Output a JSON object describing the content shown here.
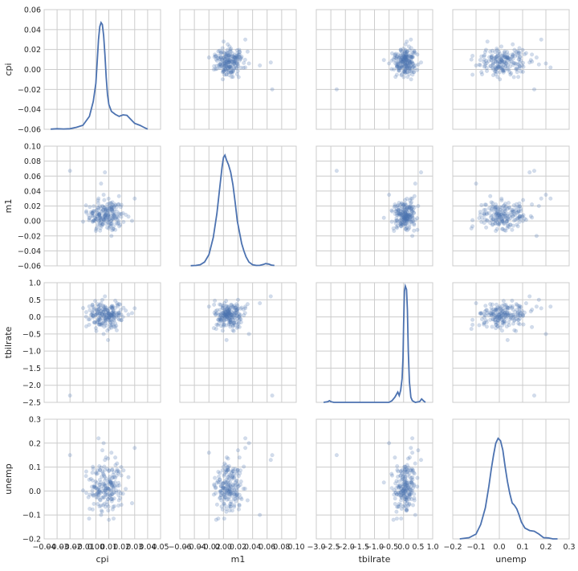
{
  "chart_data": {
    "type": "scatter",
    "variables": [
      "cpi",
      "m1",
      "tbilrate",
      "unemp"
    ],
    "axes": {
      "cpi": {
        "label": "cpi",
        "lim": [
          -0.04,
          0.05
        ],
        "x_ticks": [
          "−0.04",
          "−0.03",
          "−0.02",
          "−0.01",
          "0.00",
          "0.01",
          "0.02",
          "0.03",
          "0.04",
          "0.05"
        ],
        "x_tick_values": [
          -0.04,
          -0.03,
          -0.02,
          -0.01,
          0.0,
          0.01,
          0.02,
          0.03,
          0.04,
          0.05
        ],
        "y_lim": [
          -0.06,
          0.06
        ],
        "y_ticks": [
          "−0.06",
          "−0.04",
          "−0.02",
          "0.00",
          "0.02",
          "0.04",
          "0.06"
        ],
        "y_tick_values": [
          -0.06,
          -0.04,
          -0.02,
          0.0,
          0.02,
          0.04,
          0.06
        ]
      },
      "m1": {
        "label": "m1",
        "lim": [
          -0.06,
          0.1
        ],
        "x_ticks": [
          "−0.06",
          "−0.04",
          "−0.02",
          "0.00",
          "0.02",
          "0.04",
          "0.06",
          "0.08",
          "0.10"
        ],
        "x_tick_values": [
          -0.06,
          -0.04,
          -0.02,
          0.0,
          0.02,
          0.04,
          0.06,
          0.08,
          0.1
        ],
        "y_lim": [
          -0.06,
          0.1
        ],
        "y_ticks": [
          "−0.06",
          "−0.04",
          "−0.02",
          "0.00",
          "0.02",
          "0.04",
          "0.06",
          "0.08",
          "0.10"
        ],
        "y_tick_values": [
          -0.06,
          -0.04,
          -0.02,
          0.0,
          0.02,
          0.04,
          0.06,
          0.08,
          0.1
        ]
      },
      "tbilrate": {
        "label": "tbilrate",
        "lim": [
          -3.0,
          1.0
        ],
        "x_ticks": [
          "−3.0",
          "−2.5",
          "−2.0",
          "−1.5",
          "−1.0",
          "−0.5",
          "0.0",
          "0.5",
          "1.0"
        ],
        "x_tick_values": [
          -3.0,
          -2.5,
          -2.0,
          -1.5,
          -1.0,
          -0.5,
          0.0,
          0.5,
          1.0
        ],
        "y_lim": [
          -2.5,
          1.0
        ],
        "y_ticks": [
          "−2.5",
          "−2.0",
          "−1.5",
          "−1.0",
          "−0.5",
          "0.0",
          "0.5",
          "1.0"
        ],
        "y_tick_values": [
          -2.5,
          -2.0,
          -1.5,
          -1.0,
          -0.5,
          0.0,
          0.5,
          1.0
        ]
      },
      "unemp": {
        "label": "unemp",
        "lim": [
          -0.2,
          0.3
        ],
        "x_ticks": [
          "−0.2",
          "−0.1",
          "0.0",
          "0.1",
          "0.2",
          "0.3"
        ],
        "x_tick_values": [
          -0.2,
          -0.1,
          0.0,
          0.1,
          0.2,
          0.3
        ],
        "y_lim": [
          -0.2,
          0.3
        ],
        "y_ticks": [
          "−0.2",
          "−0.1",
          "0.0",
          "0.1",
          "0.2",
          "0.3"
        ],
        "y_tick_values": [
          -0.2,
          -0.1,
          0.0,
          0.1,
          0.2,
          0.3
        ]
      }
    },
    "kde": {
      "cpi": [
        [
          -0.035,
          -0.0598
        ],
        [
          -0.03,
          -0.0594
        ],
        [
          -0.025,
          -0.0597
        ],
        [
          -0.02,
          -0.0594
        ],
        [
          -0.015,
          -0.058
        ],
        [
          -0.01,
          -0.056
        ],
        [
          -0.005,
          -0.047
        ],
        [
          -0.002,
          -0.032
        ],
        [
          0.0,
          -0.014
        ],
        [
          0.001,
          0.008
        ],
        [
          0.002,
          0.03
        ],
        [
          0.003,
          0.043
        ],
        [
          0.004,
          0.047
        ],
        [
          0.005,
          0.045
        ],
        [
          0.006,
          0.034
        ],
        [
          0.007,
          0.015
        ],
        [
          0.008,
          -0.008
        ],
        [
          0.009,
          -0.025
        ],
        [
          0.01,
          -0.035
        ],
        [
          0.012,
          -0.042
        ],
        [
          0.015,
          -0.045
        ],
        [
          0.018,
          -0.047
        ],
        [
          0.021,
          -0.0455
        ],
        [
          0.024,
          -0.046
        ],
        [
          0.027,
          -0.05
        ],
        [
          0.03,
          -0.054
        ],
        [
          0.034,
          -0.056
        ],
        [
          0.037,
          -0.058
        ],
        [
          0.04,
          -0.0598
        ]
      ],
      "m1": [
        [
          -0.045,
          -0.0598
        ],
        [
          -0.038,
          -0.0595
        ],
        [
          -0.032,
          -0.0585
        ],
        [
          -0.026,
          -0.055
        ],
        [
          -0.02,
          -0.045
        ],
        [
          -0.014,
          -0.022
        ],
        [
          -0.009,
          0.01
        ],
        [
          -0.005,
          0.045
        ],
        [
          -0.002,
          0.072
        ],
        [
          0.0,
          0.085
        ],
        [
          0.002,
          0.088
        ],
        [
          0.004,
          0.082
        ],
        [
          0.007,
          0.075
        ],
        [
          0.01,
          0.065
        ],
        [
          0.013,
          0.048
        ],
        [
          0.016,
          0.025
        ],
        [
          0.019,
          0.0
        ],
        [
          0.022,
          -0.015
        ],
        [
          0.025,
          -0.03
        ],
        [
          0.028,
          -0.04
        ],
        [
          0.031,
          -0.048
        ],
        [
          0.035,
          -0.055
        ],
        [
          0.04,
          -0.0585
        ],
        [
          0.045,
          -0.0595
        ],
        [
          0.05,
          -0.0594
        ],
        [
          0.055,
          -0.0582
        ],
        [
          0.058,
          -0.057
        ],
        [
          0.062,
          -0.0576
        ],
        [
          0.066,
          -0.059
        ],
        [
          0.07,
          -0.0595
        ]
      ],
      "tbilrate": [
        [
          -2.75,
          -2.5
        ],
        [
          -2.6,
          -2.48
        ],
        [
          -2.55,
          -2.45
        ],
        [
          -2.5,
          -2.48
        ],
        [
          -2.4,
          -2.5
        ],
        [
          -1.0,
          -2.5
        ],
        [
          -0.5,
          -2.5
        ],
        [
          -0.4,
          -2.45
        ],
        [
          -0.3,
          -2.35
        ],
        [
          -0.2,
          -2.2
        ],
        [
          -0.15,
          -2.3
        ],
        [
          -0.1,
          -2.15
        ],
        [
          -0.05,
          -1.8
        ],
        [
          -0.02,
          -1.2
        ],
        [
          0.0,
          -0.2
        ],
        [
          0.03,
          0.75
        ],
        [
          0.06,
          0.9
        ],
        [
          0.1,
          0.8
        ],
        [
          0.13,
          0.2
        ],
        [
          0.16,
          -1.0
        ],
        [
          0.2,
          -1.9
        ],
        [
          0.25,
          -2.35
        ],
        [
          0.3,
          -2.45
        ],
        [
          0.4,
          -2.5
        ],
        [
          0.55,
          -2.48
        ],
        [
          0.62,
          -2.4
        ],
        [
          0.68,
          -2.45
        ],
        [
          0.75,
          -2.5
        ]
      ],
      "unemp": [
        [
          -0.17,
          -0.2
        ],
        [
          -0.13,
          -0.195
        ],
        [
          -0.1,
          -0.18
        ],
        [
          -0.08,
          -0.14
        ],
        [
          -0.06,
          -0.07
        ],
        [
          -0.045,
          0.02
        ],
        [
          -0.035,
          0.09
        ],
        [
          -0.025,
          0.15
        ],
        [
          -0.015,
          0.2
        ],
        [
          -0.005,
          0.22
        ],
        [
          0.005,
          0.21
        ],
        [
          0.015,
          0.17
        ],
        [
          0.025,
          0.1
        ],
        [
          0.035,
          0.04
        ],
        [
          0.045,
          -0.01
        ],
        [
          0.055,
          -0.05
        ],
        [
          0.065,
          -0.06
        ],
        [
          0.075,
          -0.075
        ],
        [
          0.085,
          -0.1
        ],
        [
          0.095,
          -0.13
        ],
        [
          0.11,
          -0.155
        ],
        [
          0.13,
          -0.165
        ],
        [
          0.15,
          -0.168
        ],
        [
          0.17,
          -0.18
        ],
        [
          0.19,
          -0.195
        ],
        [
          0.21,
          -0.196
        ],
        [
          0.23,
          -0.2
        ],
        [
          0.25,
          -0.2
        ]
      ]
    },
    "cluster_params": {
      "cpi": [
        0.008,
        0.008
      ],
      "m1": [
        0.008,
        0.012
      ],
      "tbilrate": [
        0.05,
        0.2
      ],
      "unemp": [
        0.01,
        0.06
      ]
    },
    "outliers": {
      "cpi": [
        -0.02,
        0.007,
        0.006,
        0.002,
        0.005,
        0.004,
        0.01,
        0.012,
        0.015,
        0.03
      ],
      "m1": [
        0.067,
        0.065,
        0.035,
        0.03,
        0.02,
        0.05,
        -0.01,
        -0.02,
        0.022,
        0.03
      ],
      "tbilrate": [
        -2.3,
        0.6,
        -0.5,
        0.3,
        0.5,
        0.4,
        -0.35,
        0.3,
        -0.3,
        0.25
      ],
      "unemp": [
        0.15,
        0.13,
        0.2,
        0.22,
        0.17,
        -0.1,
        -0.12,
        0.16,
        0.14,
        0.18
      ]
    },
    "point_color": "#4c72b0",
    "point_opacity": 0.25,
    "line_color": "#4c72b0",
    "grid": true,
    "grid_color": "#cccccc"
  }
}
